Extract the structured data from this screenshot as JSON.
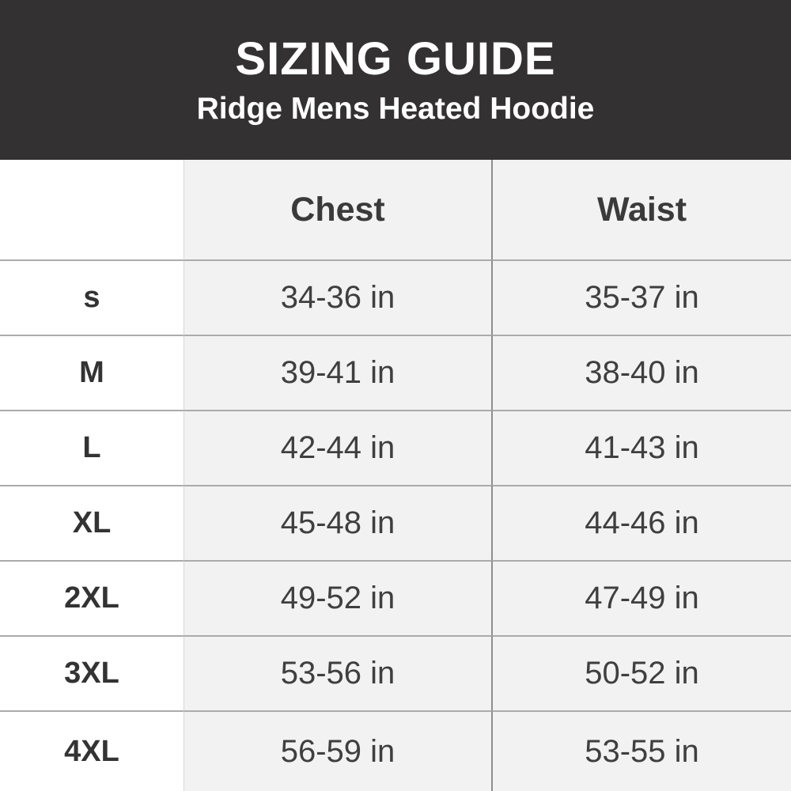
{
  "header": {
    "title": "SIZING GUIDE",
    "subtitle": "Ridge Mens Heated Hoodie"
  },
  "table": {
    "columns": [
      "",
      "Chest",
      "Waist"
    ],
    "rows": [
      {
        "size": "s",
        "chest": "34-36 in",
        "waist": "35-37 in"
      },
      {
        "size": "M",
        "chest": "39-41 in",
        "waist": "38-40 in"
      },
      {
        "size": "L",
        "chest": "42-44 in",
        "waist": "41-43 in"
      },
      {
        "size": "XL",
        "chest": "45-48 in",
        "waist": "44-46 in"
      },
      {
        "size": "2XL",
        "chest": "49-52 in",
        "waist": "47-49 in"
      },
      {
        "size": "3XL",
        "chest": "53-56 in",
        "waist": "50-52 in"
      },
      {
        "size": "4XL",
        "chest": "56-59 in",
        "waist": "53-55 in"
      }
    ]
  },
  "colors": {
    "header_bg": "#333132",
    "header_text": "#ffffff",
    "cell_bg": "#f2f2f2",
    "size_col_bg": "#ffffff",
    "row_line": "#ababab",
    "col_line": "#8e8e8e",
    "text": "#3f3f3f"
  }
}
